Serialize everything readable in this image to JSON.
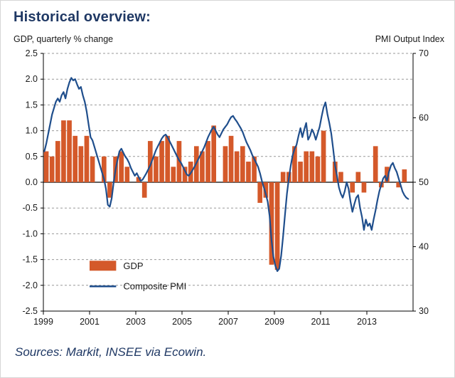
{
  "page": {
    "title": "Historical overview:",
    "sources": "Sources: Markit, INSEE via Ecowin."
  },
  "chart_data": {
    "type": "combo-bar-line",
    "title": "Historical overview:",
    "left_axis_label": "GDP, quarterly % change",
    "right_axis_label": "PMI Output Index",
    "x_min": 1999,
    "x_max": 2015,
    "y_left_min": -2.5,
    "y_left_max": 2.5,
    "y_right_min": 30,
    "y_right_max": 70,
    "left_ticks": [
      "2.5",
      "2.0",
      "1.5",
      "1.0",
      "0.5",
      "0.0",
      "-0.5",
      "-1.0",
      "-1.5",
      "-2.0",
      "-2.5"
    ],
    "right_ticks": [
      "70",
      "60",
      "50",
      "40",
      "30"
    ],
    "x_ticks": [
      "1999",
      "2001",
      "2003",
      "2005",
      "2007",
      "2009",
      "2011",
      "2013"
    ],
    "grid": "dashed-horizontal",
    "legend_position": "inside-bottom-left",
    "colors": {
      "gdp_bar": "#D4592A",
      "pmi_line": "#1F4E8C",
      "title_text": "#1F3864",
      "zero_line": "#000000",
      "gridline": "#999999"
    },
    "series": [
      {
        "name": "GDP",
        "type": "bar",
        "axis": "left",
        "start": 1999,
        "step": 0.25,
        "values": [
          0.6,
          0.5,
          0.8,
          1.2,
          1.2,
          0.9,
          0.7,
          0.9,
          0.5,
          0.0,
          0.5,
          -0.3,
          0.5,
          0.6,
          0.3,
          0.0,
          0.1,
          -0.3,
          0.8,
          0.5,
          0.8,
          0.9,
          0.3,
          0.8,
          0.3,
          0.4,
          0.7,
          0.6,
          0.8,
          1.1,
          0.0,
          0.7,
          0.9,
          0.6,
          0.7,
          0.4,
          0.5,
          -0.4,
          -0.3,
          -1.6,
          -1.7,
          0.2,
          0.2,
          0.7,
          0.4,
          0.6,
          0.6,
          0.5,
          1.0,
          0.0,
          0.4,
          0.2,
          0.0,
          -0.2,
          0.2,
          -0.2,
          0.0,
          0.7,
          -0.1,
          0.3,
          0.0,
          -0.1,
          0.25
        ]
      },
      {
        "name": "Composite PMI",
        "type": "line",
        "axis": "right",
        "start": 1999,
        "step": 0.0833333,
        "values": [
          54.8,
          56.0,
          57.5,
          59.0,
          60.5,
          61.5,
          62.5,
          63.0,
          62.5,
          63.5,
          64.0,
          63.0,
          64.5,
          65.5,
          66.2,
          65.8,
          66.0,
          65.2,
          64.5,
          64.8,
          63.5,
          62.5,
          61.0,
          59.0,
          57.0,
          56.5,
          55.5,
          54.5,
          53.5,
          52.5,
          51.5,
          50.5,
          49.0,
          46.5,
          46.2,
          47.5,
          50.0,
          52.0,
          53.5,
          54.8,
          55.2,
          54.6,
          54.0,
          53.6,
          53.0,
          52.2,
          51.6,
          51.0,
          51.4,
          50.8,
          50.2,
          50.4,
          50.9,
          51.4,
          52.0,
          52.6,
          53.4,
          54.2,
          55.0,
          55.6,
          56.2,
          56.8,
          57.2,
          57.4,
          57.0,
          56.4,
          55.8,
          55.2,
          54.6,
          54.0,
          53.4,
          53.0,
          52.4,
          51.8,
          51.2,
          51.0,
          51.4,
          51.9,
          52.4,
          53.0,
          53.6,
          54.2,
          54.8,
          55.4,
          56.2,
          57.0,
          57.6,
          58.2,
          58.6,
          58.0,
          57.4,
          57.0,
          57.6,
          58.2,
          58.6,
          59.0,
          59.6,
          60.1,
          60.3,
          59.8,
          59.4,
          58.9,
          58.4,
          57.8,
          57.0,
          56.2,
          55.6,
          55.0,
          54.2,
          53.6,
          53.0,
          52.4,
          51.4,
          50.2,
          49.2,
          48.2,
          47.0,
          44.8,
          41.0,
          38.4,
          37.0,
          36.2,
          36.6,
          38.6,
          41.6,
          45.0,
          48.2,
          50.6,
          52.6,
          54.2,
          55.2,
          55.8,
          57.2,
          58.4,
          57.0,
          58.2,
          59.2,
          56.6,
          57.2,
          58.2,
          57.6,
          56.6,
          57.6,
          58.6,
          60.2,
          61.6,
          62.4,
          60.6,
          59.2,
          57.6,
          55.2,
          52.6,
          51.0,
          49.2,
          48.2,
          47.6,
          48.6,
          50.0,
          49.0,
          47.0,
          45.4,
          46.6,
          47.6,
          48.0,
          46.0,
          44.6,
          42.6,
          44.2,
          43.2,
          43.6,
          42.6,
          44.2,
          45.6,
          47.2,
          48.6,
          49.6,
          50.6,
          51.0,
          50.2,
          51.6,
          52.6,
          53.0,
          52.2,
          51.6,
          50.6,
          49.6,
          48.6,
          48.0,
          47.6,
          47.4
        ]
      }
    ],
    "legend": [
      "GDP",
      "Composite PMI"
    ]
  }
}
